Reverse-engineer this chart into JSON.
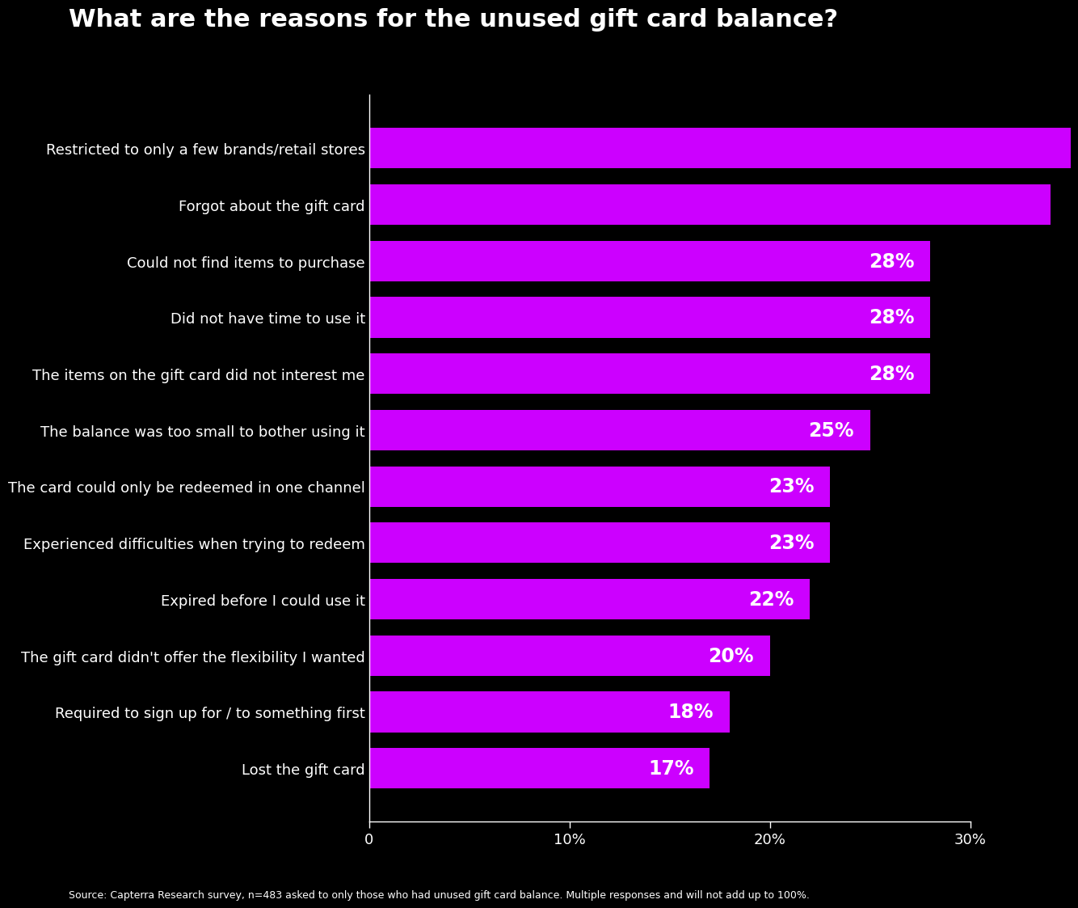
{
  "title": "What are the reasons for the unused gift card balance?",
  "categories": [
    "Restricted to only a few brands/retail stores",
    "Forgot about the gift card",
    "Could not find items to purchase",
    "Did not have time to use it",
    "The items on the gift card did not interest me",
    "The balance was too small to bother using it",
    "The card could only be redeemed in one channel",
    "Experienced difficulties when trying to redeem",
    "Expired before I could use it",
    "The gift card didn't offer the flexibility I wanted",
    "Required to sign up for / to something first",
    "Lost the gift card"
  ],
  "values": [
    35,
    34,
    28,
    28,
    28,
    25,
    23,
    23,
    22,
    20,
    18,
    17
  ],
  "show_label": [
    false,
    false,
    true,
    true,
    true,
    true,
    true,
    true,
    true,
    true,
    true,
    true
  ],
  "bar_color": "#CC00FF",
  "background_color": "#000000",
  "text_color": "#FFFFFF",
  "xlim": [
    0,
    30
  ],
  "xticks": [
    0,
    10,
    20,
    30
  ],
  "xticklabels": [
    "0",
    "10%",
    "20%",
    "30%"
  ],
  "title_fontsize": 22,
  "label_fontsize": 13,
  "tick_fontsize": 13,
  "bar_label_fontsize": 17,
  "footnote": "Source: Capterra Research survey, n=483 asked to only those who had unused gift card balance. Multiple responses and will not add up to 100%."
}
